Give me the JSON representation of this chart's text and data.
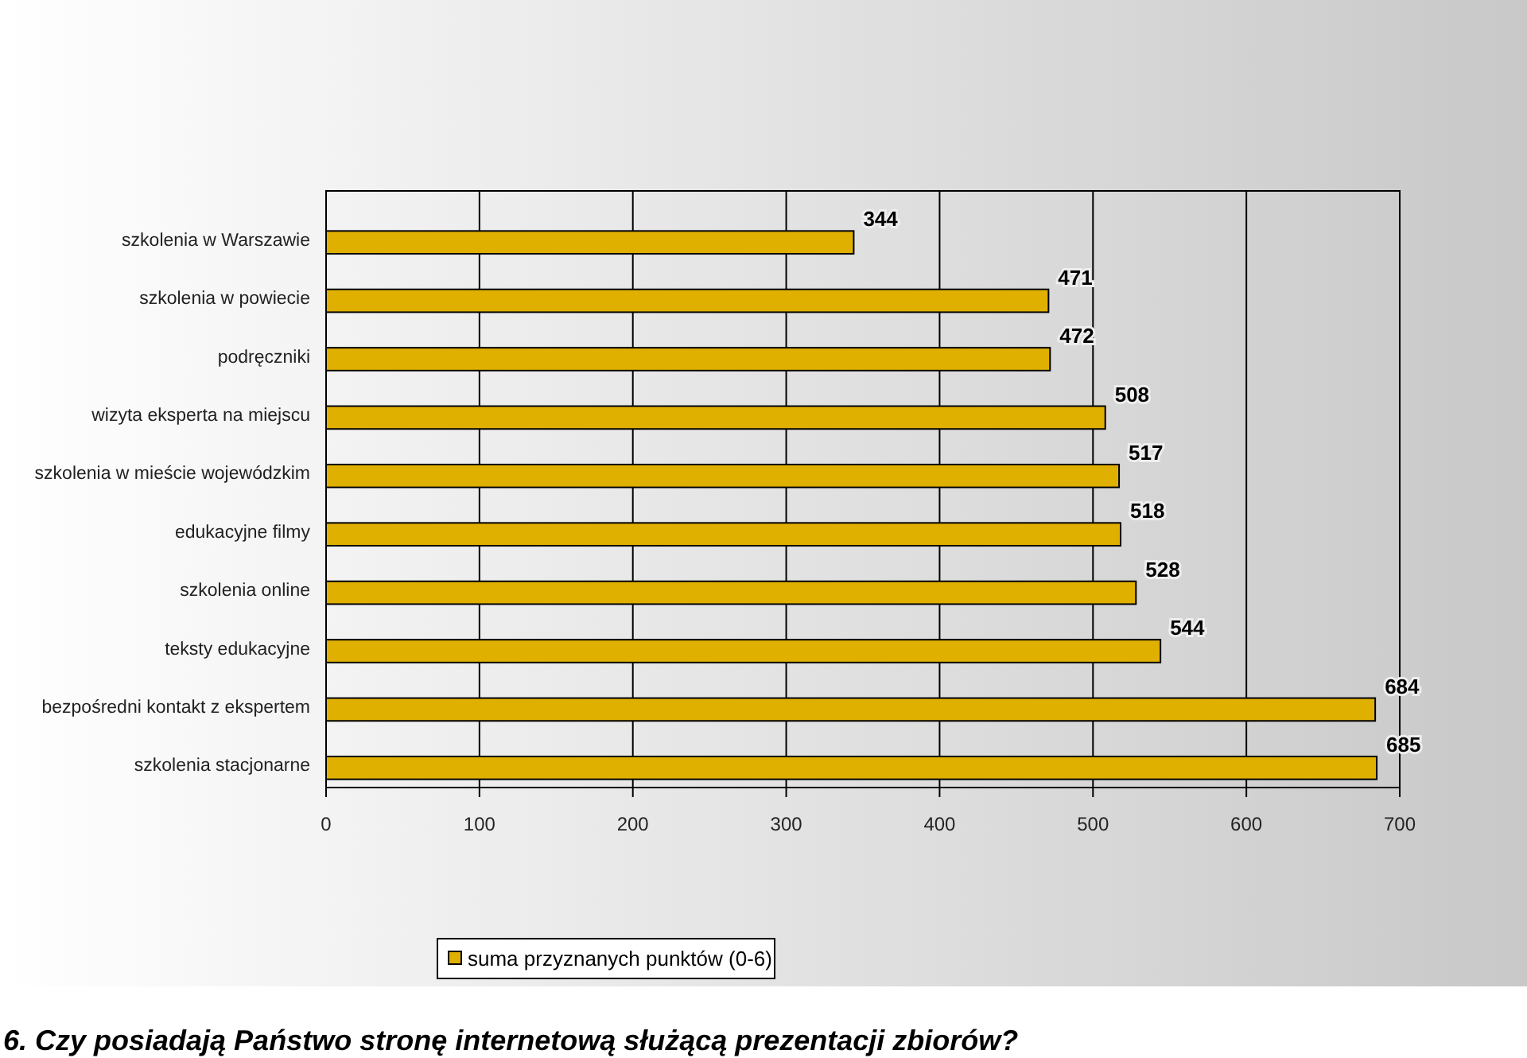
{
  "chart_data": {
    "type": "bar",
    "orientation": "horizontal",
    "categories": [
      "szkolenia w Warszawie",
      "szkolenia w powiecie",
      "podręczniki",
      "wizyta eksperta na miejscu",
      "szkolenia w mieście wojewódzkim",
      "edukacyjne filmy",
      "szkolenia online",
      "teksty edukacyjne",
      "bezpośredni kontakt z ekspertem",
      "szkolenia stacjonarne"
    ],
    "series": [
      {
        "name": "suma przyznanych punktów (0-6)",
        "color": "#e0b000",
        "values": [
          344,
          471,
          472,
          508,
          517,
          518,
          528,
          544,
          684,
          685
        ]
      }
    ],
    "xlim": [
      0,
      700
    ],
    "xticks": [
      0,
      100,
      200,
      300,
      400,
      500,
      600,
      700
    ],
    "grid": "x",
    "data_labels": true,
    "legend": "bottom",
    "annotations": [
      "6. Czy posiadają Państwo stronę internetową służącą prezentacji zbiorów?"
    ]
  }
}
